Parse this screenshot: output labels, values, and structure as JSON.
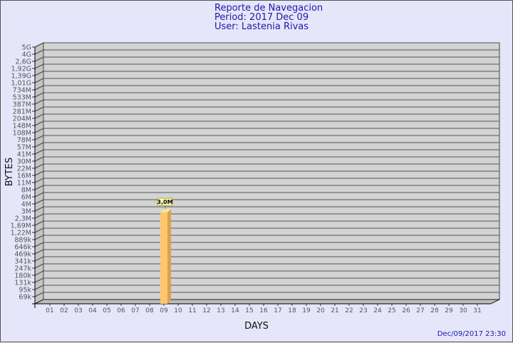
{
  "header": {
    "title": "Reporte de Navegacion",
    "period": "Period: 2017 Dec 09",
    "user": "User: Lastenia Rivas"
  },
  "footer": {
    "timestamp": "Dec/09/2017 23:30"
  },
  "chart_data": {
    "type": "bar",
    "title": "Reporte de Navegacion",
    "xlabel": "DAYS",
    "ylabel": "BYTES",
    "y_scale": "log",
    "grid": true,
    "three_d": true,
    "y_ticks": [
      "5G",
      "4G",
      "2,6G",
      "1,92G",
      "1,39G",
      "1,01G",
      "734M",
      "533M",
      "387M",
      "281M",
      "204M",
      "148M",
      "108M",
      "78M",
      "57M",
      "41M",
      "30M",
      "22M",
      "16M",
      "11M",
      "8M",
      "6M",
      "4M",
      "3M",
      "2,3M",
      "1,69M",
      "1,22M",
      "889k",
      "646k",
      "469k",
      "341k",
      "247k",
      "180k",
      "131k",
      "95k",
      "69k"
    ],
    "categories": [
      "01",
      "02",
      "03",
      "04",
      "05",
      "06",
      "07",
      "08",
      "09",
      "10",
      "11",
      "12",
      "13",
      "14",
      "15",
      "16",
      "17",
      "18",
      "19",
      "20",
      "21",
      "22",
      "23",
      "24",
      "25",
      "26",
      "27",
      "28",
      "29",
      "30",
      "31"
    ],
    "values": [
      0,
      0,
      0,
      0,
      0,
      0,
      0,
      0,
      3000000,
      0,
      0,
      0,
      0,
      0,
      0,
      0,
      0,
      0,
      0,
      0,
      0,
      0,
      0,
      0,
      0,
      0,
      0,
      0,
      0,
      0,
      0
    ],
    "data_labels": {
      "09": "3,0M"
    },
    "colors": {
      "bar": "#ffc66e",
      "bar_side": "#dba24e",
      "bar_top": "#ffe29a",
      "wall": "#d3d3d3",
      "label_bg": "#ffffc0",
      "label_border": "#b8a830"
    }
  }
}
